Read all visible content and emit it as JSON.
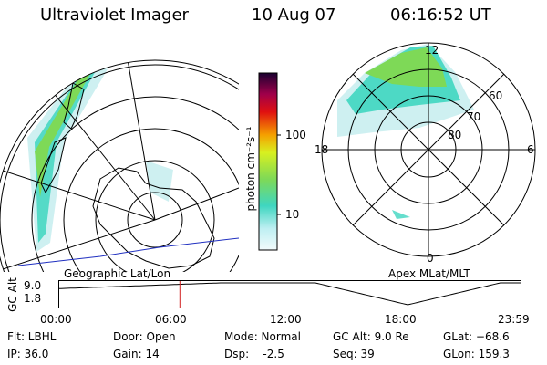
{
  "header": {
    "instrument": "Ultraviolet Imager",
    "date": "10 Aug 07",
    "time": "06:16:52 UT"
  },
  "colorbar": {
    "unit_label": "photon cm⁻²s⁻¹",
    "ticks": [
      "100",
      "10"
    ]
  },
  "geo_panel": {
    "label": "Geographic Lat/Lon"
  },
  "apex_panel": {
    "label": "Apex MLat/MLT",
    "mlt_labels": {
      "top": "12",
      "left": "18",
      "right": "6",
      "bottom": "0"
    },
    "lat_labels": [
      "60",
      "70",
      "80"
    ]
  },
  "timeline": {
    "ylabel": "GC Alt",
    "y_ticks": [
      "9.0",
      "1.8"
    ],
    "x_ticks": [
      "00:00",
      "06:00",
      "12:00",
      "18:00",
      "23:59"
    ],
    "marker_time": "06:16:52"
  },
  "status": {
    "flt": "Flt: LBHL",
    "ip": "IP: 36.0",
    "door": "Door: Open",
    "gain": "Gain: 14",
    "mode": "Mode: Normal",
    "dsp": "Dsp:    -2.5",
    "gcalt": "GC Alt: 9.0 Re",
    "seq": "Seq: 39",
    "glat": "GLat: −68.6",
    "glon": "GLon: 159.3"
  },
  "colors": {
    "aurora_strong": "#7ed957",
    "aurora_mid": "#3fd6c0",
    "aurora_faint": "#c9eef0",
    "timeline_marker": "#d02020",
    "orbit_line": "#2030c0"
  }
}
